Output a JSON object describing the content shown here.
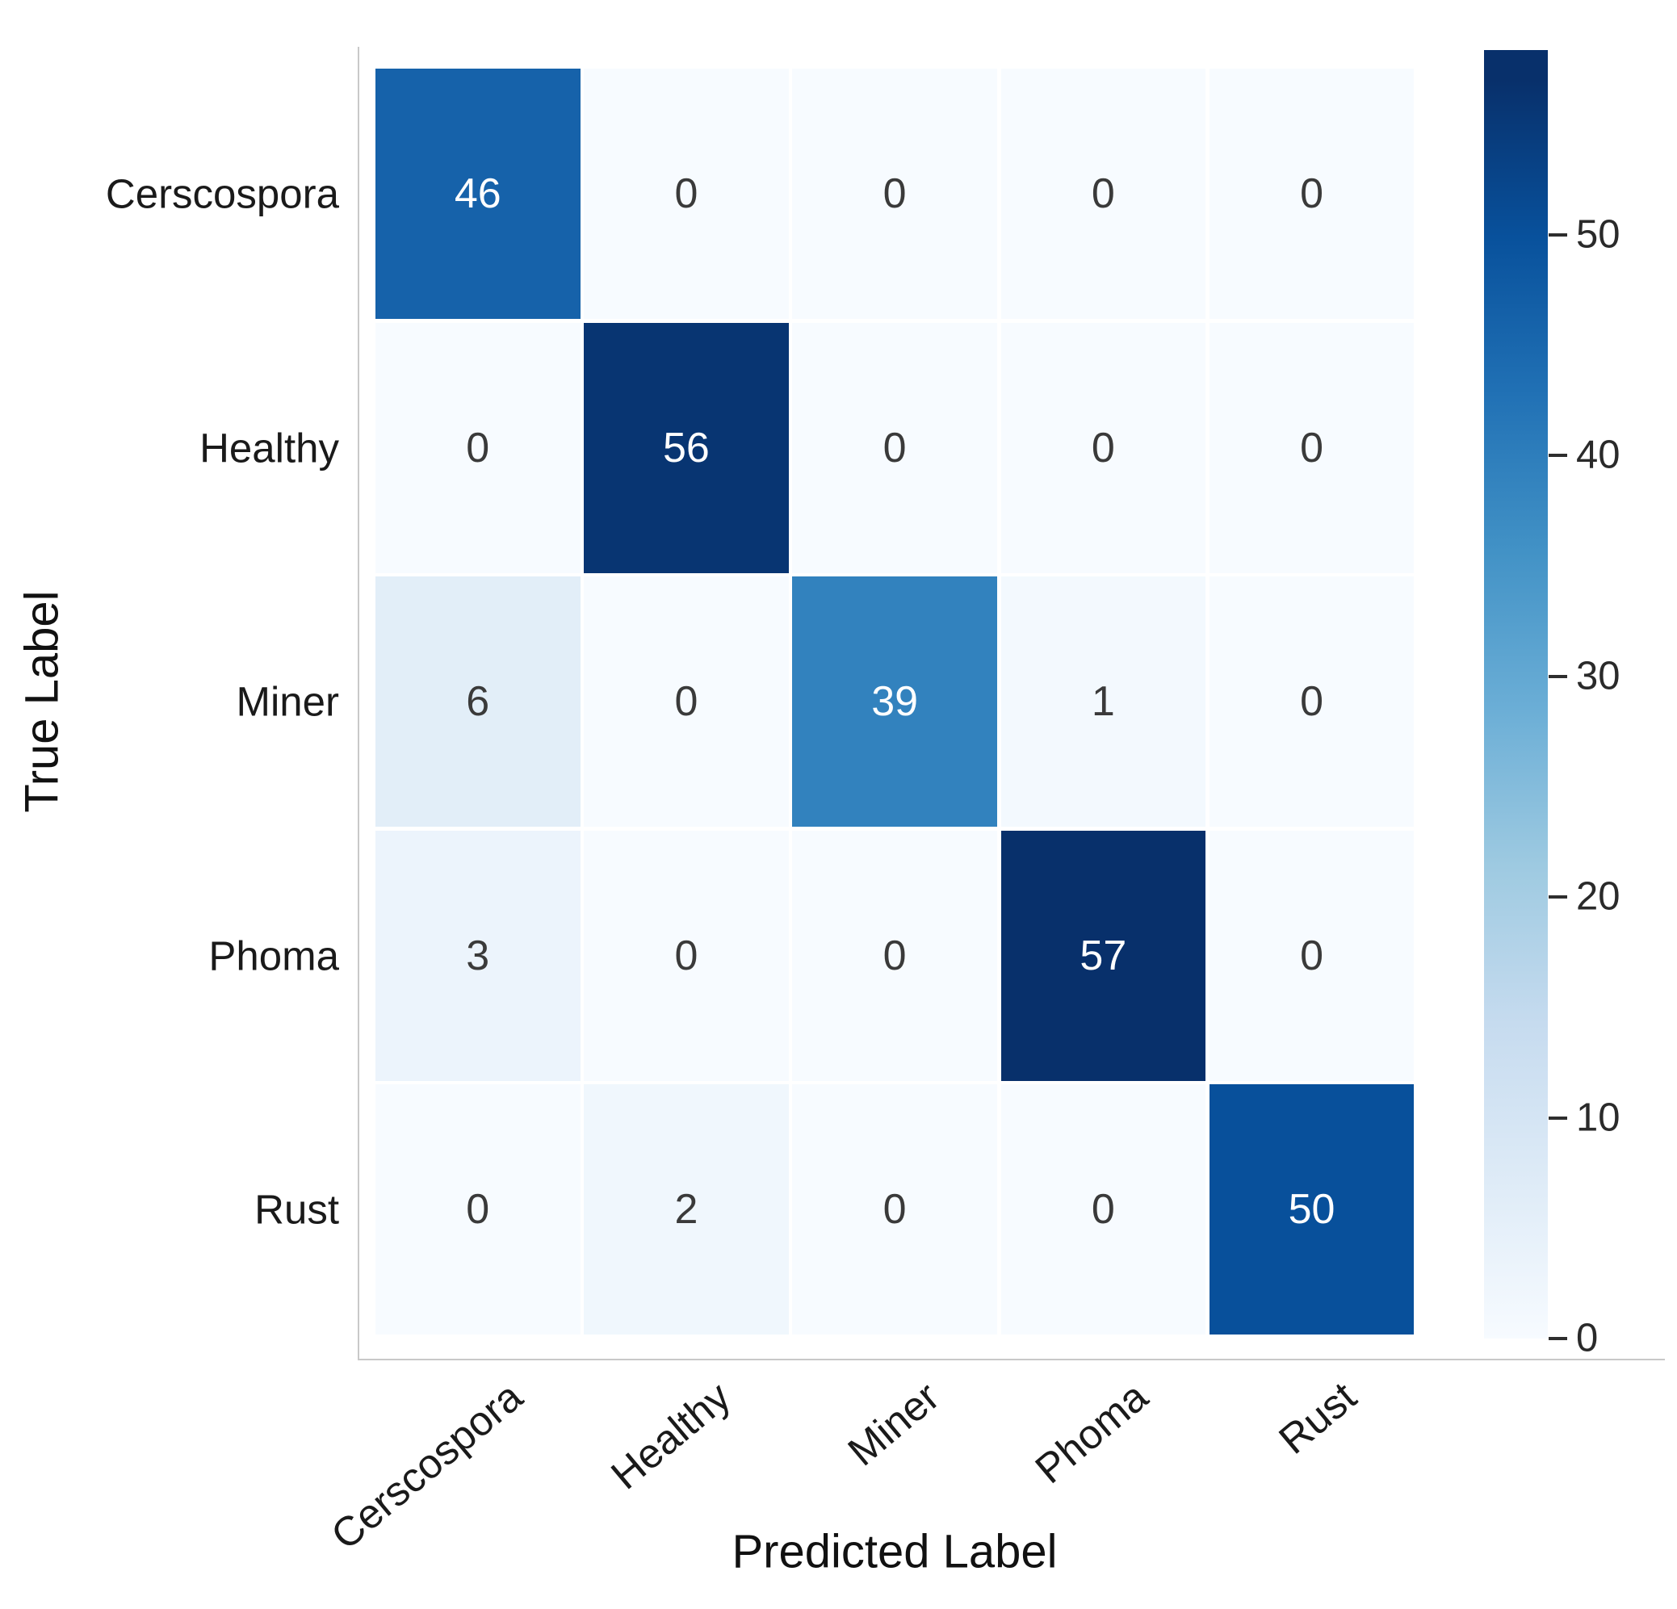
{
  "chart_data": {
    "type": "heatmap",
    "title": "",
    "xlabel": "Predicted Label",
    "ylabel": "True Label",
    "x_categories": [
      "Cerscospora",
      "Healthy",
      "Miner",
      "Phoma",
      "Rust"
    ],
    "y_categories": [
      "Cerscospora",
      "Healthy",
      "Miner",
      "Phoma",
      "Rust"
    ],
    "matrix": [
      [
        46,
        0,
        0,
        0,
        0
      ],
      [
        0,
        56,
        0,
        0,
        0
      ],
      [
        6,
        0,
        39,
        1,
        0
      ],
      [
        3,
        0,
        0,
        57,
        0
      ],
      [
        0,
        2,
        0,
        0,
        50
      ]
    ],
    "annotations": true,
    "colormap": "Blues",
    "vmin": 0,
    "vmax": 57,
    "grid": false,
    "colorbar_position": "right",
    "colorbar_ticks": [
      0,
      10,
      20,
      30,
      40,
      50
    ]
  },
  "colors": {
    "background": "#ffffff",
    "spine": "#c9c9c9",
    "tick_mark": "#2e2e2e",
    "tick_label": "#2a2a2a",
    "axis_label_text": "#111111",
    "annot_dark": "#3a3a3a",
    "annot_light": "#ffffff",
    "blues_anchors": [
      "#f7fbff",
      "#deebf7",
      "#c6dbef",
      "#9ecae1",
      "#6baed6",
      "#4292c6",
      "#2171b5",
      "#08519c",
      "#08306b"
    ]
  }
}
